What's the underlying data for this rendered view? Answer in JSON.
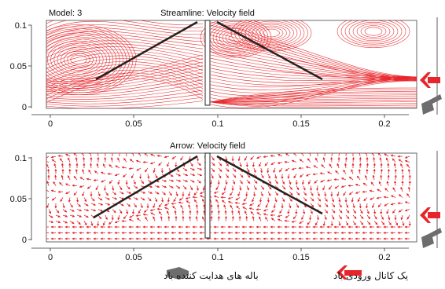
{
  "panel_top": {
    "model_label": "Model: 3",
    "title": "Streamline: Velocity field",
    "yticks": [
      "0.1",
      "0.05",
      "0"
    ],
    "xticks": [
      "0",
      "0.05",
      "0.1",
      "0.15",
      "0.2"
    ]
  },
  "panel_bottom": {
    "title": "Arrow: Velocity field",
    "yticks": [
      "0.1",
      "0.05",
      "0"
    ],
    "xticks": [
      "0",
      "0.05",
      "0.1",
      "0.15",
      "0.2"
    ]
  },
  "legend": {
    "inlet_label": "یک کانال ورودی باد",
    "vanes_label": "باله های هدایت کننده باد"
  },
  "colors": {
    "flow": "#e8252a",
    "vane_arrow": "#6d6d6d",
    "inlet_arrow": "#e8252a"
  }
}
